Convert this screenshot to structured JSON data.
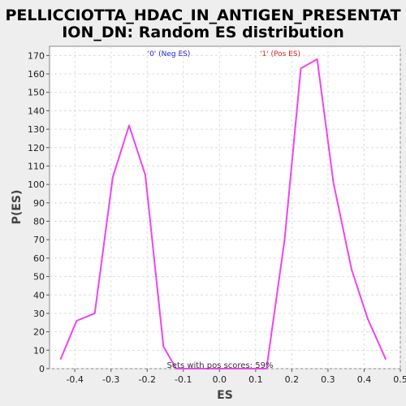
{
  "chart_data": {
    "type": "line",
    "title_line1": "PELLICCIOTTA_HDAC_IN_ANTIGEN_PRESENTAT",
    "title_line2": "ION_DN: Random ES distribution",
    "xlabel": "ES",
    "ylabel": "P(ES)",
    "xlim": [
      -0.47,
      0.5
    ],
    "ylim": [
      0,
      175
    ],
    "xticks": [
      -0.4,
      -0.3,
      -0.2,
      -0.1,
      0.0,
      0.1,
      0.2,
      0.3,
      0.4,
      0.5
    ],
    "xtick_labels": [
      "-0.4",
      "-0.3",
      "-0.2",
      "-0.1",
      "0.0",
      "0.1",
      "0.2",
      "0.3",
      "0.4",
      "0.5"
    ],
    "yticks": [
      0,
      10,
      20,
      30,
      40,
      50,
      60,
      70,
      80,
      90,
      100,
      110,
      120,
      130,
      140,
      150,
      160,
      170
    ],
    "ytick_labels": [
      "0",
      "10",
      "20",
      "30",
      "40",
      "50",
      "60",
      "70",
      "80",
      "90",
      "100",
      "110",
      "120",
      "130",
      "140",
      "150",
      "160",
      "170"
    ],
    "grid": true,
    "series": [
      {
        "color": "#ee44ee",
        "x": [
          -0.44,
          -0.395,
          -0.345,
          -0.295,
          -0.25,
          -0.205,
          -0.155,
          -0.12,
          0.13,
          0.18,
          0.225,
          0.27,
          0.315,
          0.365,
          0.41,
          0.46
        ],
        "y": [
          5,
          26,
          30,
          104,
          132,
          105,
          12,
          0,
          0,
          70,
          163,
          168,
          101,
          54,
          27,
          5
        ]
      }
    ],
    "legend": [
      {
        "label": "'0' (Neg ES)",
        "color": "#2222dd"
      },
      {
        "label": "'1' (Pos ES)",
        "color": "#dd2222"
      }
    ],
    "annotation": "Sets with pos scores: 59%"
  }
}
